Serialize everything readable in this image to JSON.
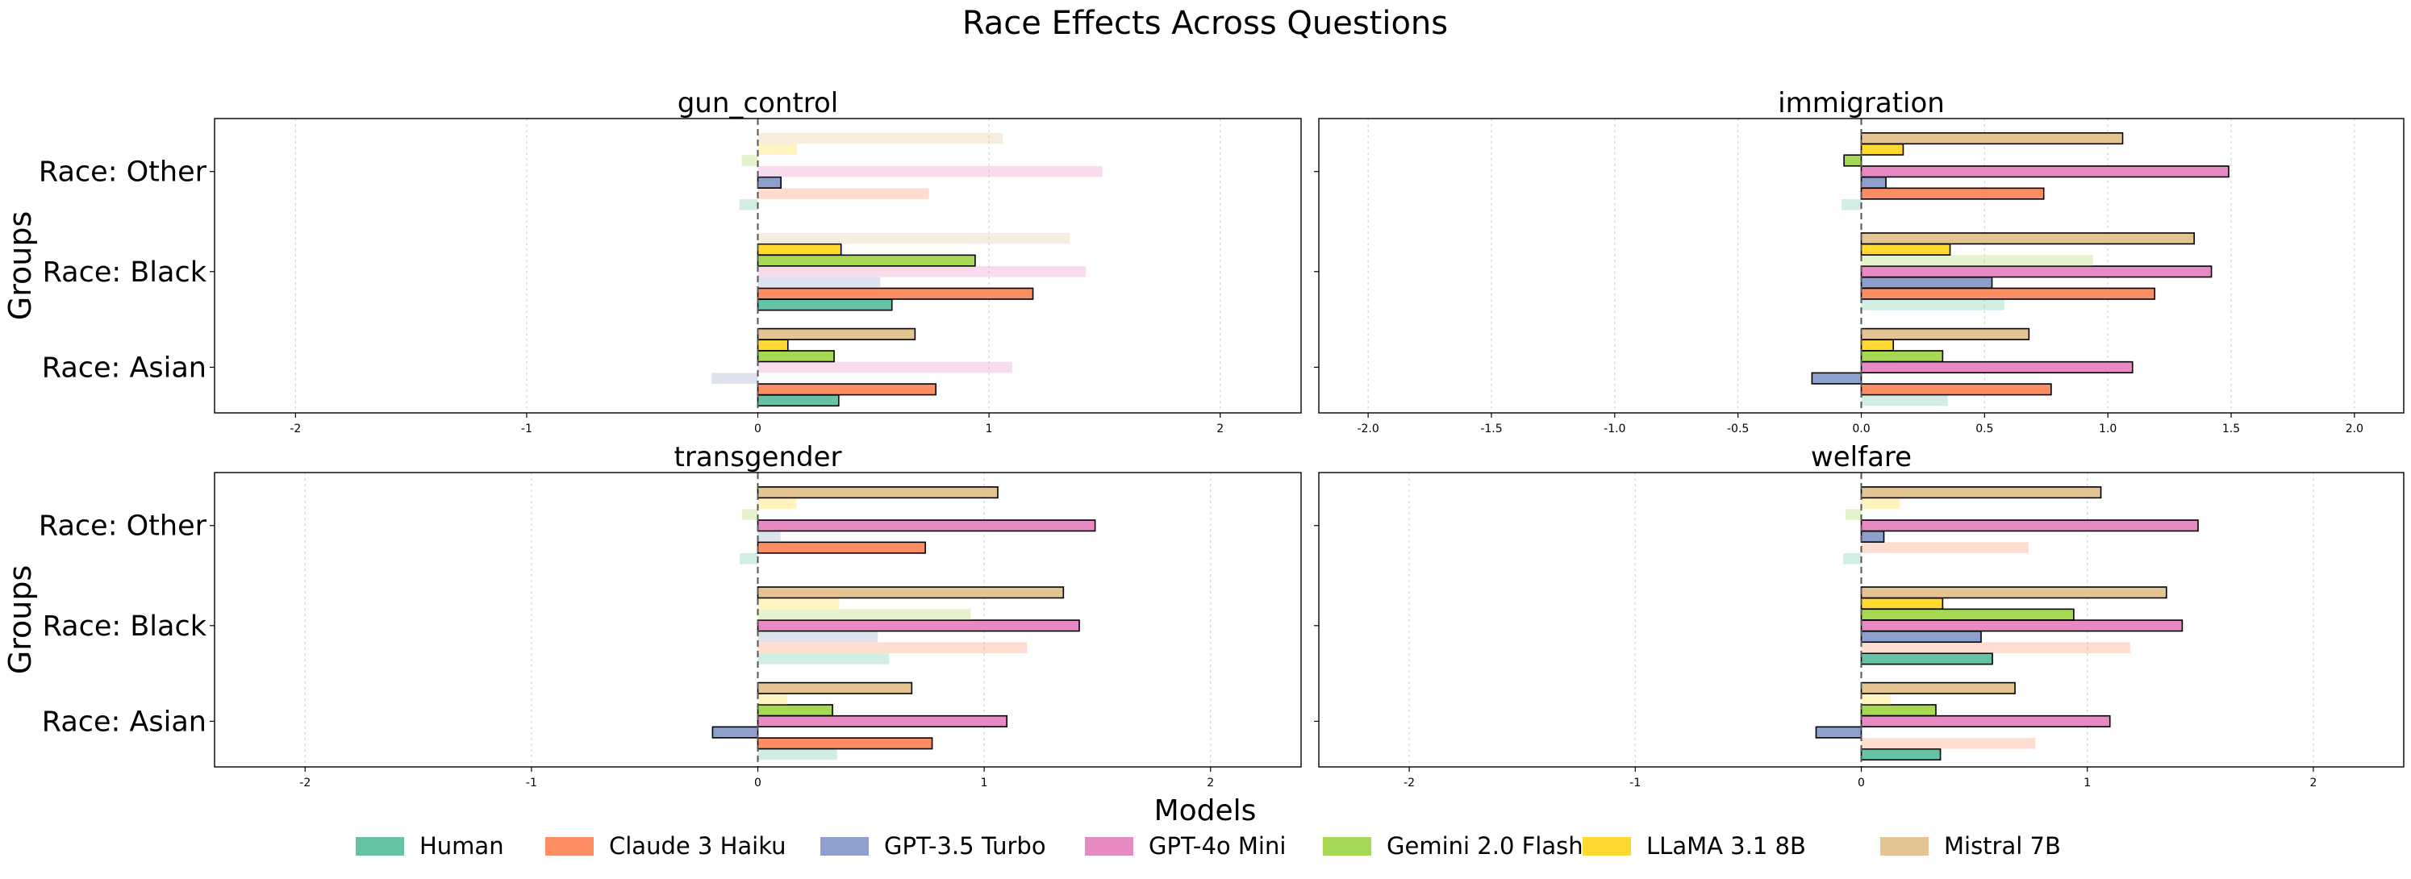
{
  "title": "Race Effects Across Questions",
  "legend_title": "Models",
  "ylabel": "Groups",
  "colors": {
    "Human": "#66c2a5",
    "Claude 3 Haiku": "#fc8d62",
    "GPT-3.5 Turbo": "#8da0cb",
    "GPT-4o Mini": "#e78ac3",
    "Gemini 2.0 Flash": "#a6d854",
    "LLaMA 3.1 8B": "#ffd92f",
    "Mistral 7B": "#e5c494"
  },
  "chart_data": [
    {
      "type": "bar",
      "orientation": "horizontal",
      "title": "gun_control",
      "xlim": [
        -2.35,
        2.35
      ],
      "xticks": [
        "-2",
        "-1",
        "0",
        "1",
        "2"
      ],
      "xtick_values": [
        -2,
        -1,
        0,
        1,
        2
      ],
      "categories": [
        "Race: Asian",
        "Race: Black",
        "Race: Other"
      ],
      "grid": "vertical dotted",
      "series": [
        {
          "name": "Human",
          "values": [
            0.35,
            0.58,
            -0.08
          ],
          "highlighted": [
            true,
            true,
            false
          ]
        },
        {
          "name": "Claude 3 Haiku",
          "values": [
            0.77,
            1.19,
            0.74
          ],
          "highlighted": [
            true,
            true,
            false
          ]
        },
        {
          "name": "GPT-3.5 Turbo",
          "values": [
            -0.2,
            0.53,
            0.1
          ],
          "highlighted": [
            false,
            false,
            true
          ]
        },
        {
          "name": "GPT-4o Mini",
          "values": [
            1.1,
            1.42,
            1.49
          ],
          "highlighted": [
            false,
            false,
            false
          ]
        },
        {
          "name": "Gemini 2.0 Flash",
          "values": [
            0.33,
            0.94,
            -0.07
          ],
          "highlighted": [
            true,
            true,
            false
          ]
        },
        {
          "name": "LLaMA 3.1 8B",
          "values": [
            0.13,
            0.36,
            0.17
          ],
          "highlighted": [
            true,
            true,
            false
          ]
        },
        {
          "name": "Mistral 7B",
          "values": [
            0.68,
            1.35,
            1.06
          ],
          "highlighted": [
            true,
            false,
            false
          ]
        }
      ]
    },
    {
      "type": "bar",
      "orientation": "horizontal",
      "title": "immigration",
      "xlim": [
        -2.2,
        2.2
      ],
      "xticks": [
        "-2.0",
        "-1.5",
        "-1.0",
        "-0.5",
        "0.0",
        "0.5",
        "1.0",
        "1.5",
        "2.0"
      ],
      "xtick_values": [
        -2,
        -1.5,
        -1,
        -0.5,
        0,
        0.5,
        1,
        1.5,
        2
      ],
      "categories": [
        "Race: Asian",
        "Race: Black",
        "Race: Other"
      ],
      "grid": "vertical dotted",
      "series": [
        {
          "name": "Human",
          "values": [
            0.35,
            0.58,
            -0.08
          ],
          "highlighted": [
            false,
            false,
            false
          ]
        },
        {
          "name": "Claude 3 Haiku",
          "values": [
            0.77,
            1.19,
            0.74
          ],
          "highlighted": [
            true,
            true,
            true
          ]
        },
        {
          "name": "GPT-3.5 Turbo",
          "values": [
            -0.2,
            0.53,
            0.1
          ],
          "highlighted": [
            true,
            true,
            true
          ]
        },
        {
          "name": "GPT-4o Mini",
          "values": [
            1.1,
            1.42,
            1.49
          ],
          "highlighted": [
            true,
            true,
            true
          ]
        },
        {
          "name": "Gemini 2.0 Flash",
          "values": [
            0.33,
            0.94,
            -0.07
          ],
          "highlighted": [
            true,
            false,
            true
          ]
        },
        {
          "name": "LLaMA 3.1 8B",
          "values": [
            0.13,
            0.36,
            0.17
          ],
          "highlighted": [
            true,
            true,
            true
          ]
        },
        {
          "name": "Mistral 7B",
          "values": [
            0.68,
            1.35,
            1.06
          ],
          "highlighted": [
            true,
            true,
            true
          ]
        }
      ]
    },
    {
      "type": "bar",
      "orientation": "horizontal",
      "title": "transgender",
      "xlim": [
        -2.4,
        2.4
      ],
      "xticks": [
        "-2",
        "-1",
        "0",
        "1",
        "2"
      ],
      "xtick_values": [
        -2,
        -1,
        0,
        1,
        2
      ],
      "categories": [
        "Race: Asian",
        "Race: Black",
        "Race: Other"
      ],
      "grid": "vertical dotted",
      "series": [
        {
          "name": "Human",
          "values": [
            0.35,
            0.58,
            -0.08
          ],
          "highlighted": [
            false,
            false,
            false
          ]
        },
        {
          "name": "Claude 3 Haiku",
          "values": [
            0.77,
            1.19,
            0.74
          ],
          "highlighted": [
            true,
            false,
            true
          ]
        },
        {
          "name": "GPT-3.5 Turbo",
          "values": [
            -0.2,
            0.53,
            0.1
          ],
          "highlighted": [
            true,
            false,
            false
          ]
        },
        {
          "name": "GPT-4o Mini",
          "values": [
            1.1,
            1.42,
            1.49
          ],
          "highlighted": [
            true,
            true,
            true
          ]
        },
        {
          "name": "Gemini 2.0 Flash",
          "values": [
            0.33,
            0.94,
            -0.07
          ],
          "highlighted": [
            true,
            false,
            false
          ]
        },
        {
          "name": "LLaMA 3.1 8B",
          "values": [
            0.13,
            0.36,
            0.17
          ],
          "highlighted": [
            false,
            false,
            false
          ]
        },
        {
          "name": "Mistral 7B",
          "values": [
            0.68,
            1.35,
            1.06
          ],
          "highlighted": [
            true,
            true,
            true
          ]
        }
      ]
    },
    {
      "type": "bar",
      "orientation": "horizontal",
      "title": "welfare",
      "xlim": [
        -2.4,
        2.4
      ],
      "xticks": [
        "-2",
        "-1",
        "0",
        "1",
        "2"
      ],
      "xtick_values": [
        -2,
        -1,
        0,
        1,
        2
      ],
      "categories": [
        "Race: Asian",
        "Race: Black",
        "Race: Other"
      ],
      "grid": "vertical dotted",
      "series": [
        {
          "name": "Human",
          "values": [
            0.35,
            0.58,
            -0.08
          ],
          "highlighted": [
            true,
            true,
            false
          ]
        },
        {
          "name": "Claude 3 Haiku",
          "values": [
            0.77,
            1.19,
            0.74
          ],
          "highlighted": [
            false,
            false,
            false
          ]
        },
        {
          "name": "GPT-3.5 Turbo",
          "values": [
            -0.2,
            0.53,
            0.1
          ],
          "highlighted": [
            true,
            true,
            true
          ]
        },
        {
          "name": "GPT-4o Mini",
          "values": [
            1.1,
            1.42,
            1.49
          ],
          "highlighted": [
            true,
            true,
            true
          ]
        },
        {
          "name": "Gemini 2.0 Flash",
          "values": [
            0.33,
            0.94,
            -0.07
          ],
          "highlighted": [
            true,
            true,
            false
          ]
        },
        {
          "name": "LLaMA 3.1 8B",
          "values": [
            0.13,
            0.36,
            0.17
          ],
          "highlighted": [
            false,
            true,
            false
          ]
        },
        {
          "name": "Mistral 7B",
          "values": [
            0.68,
            1.35,
            1.06
          ],
          "highlighted": [
            true,
            true,
            true
          ]
        }
      ]
    }
  ]
}
